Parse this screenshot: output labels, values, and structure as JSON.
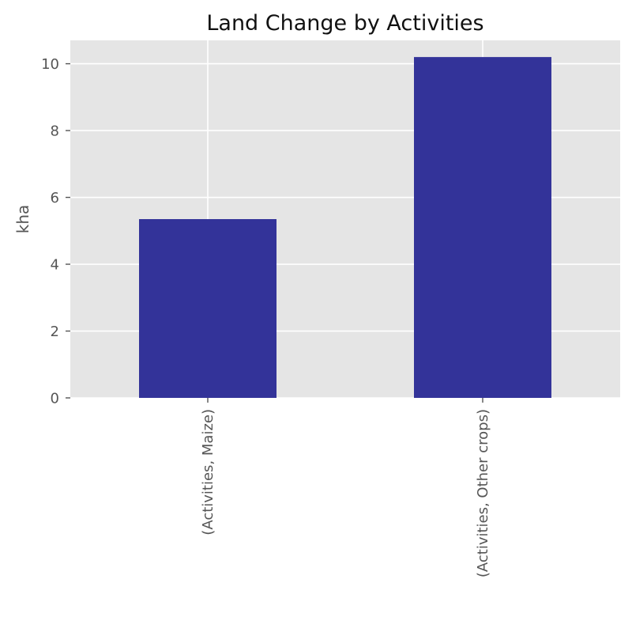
{
  "chart_data": {
    "type": "bar",
    "title": "Land Change by Activities",
    "xlabel": "",
    "ylabel": "kha",
    "categories": [
      "(Activities, Maize)",
      "(Activities, Other crops)"
    ],
    "values": [
      5.35,
      10.2
    ],
    "ylim": [
      0,
      10.7
    ],
    "yticks": [
      0,
      2,
      4,
      6,
      8,
      10
    ],
    "grid": true,
    "legend": "none",
    "colors": {
      "bar": "#333399",
      "plot_background": "#e5e5e5",
      "grid": "#ffffff",
      "tick": "#555555"
    }
  }
}
